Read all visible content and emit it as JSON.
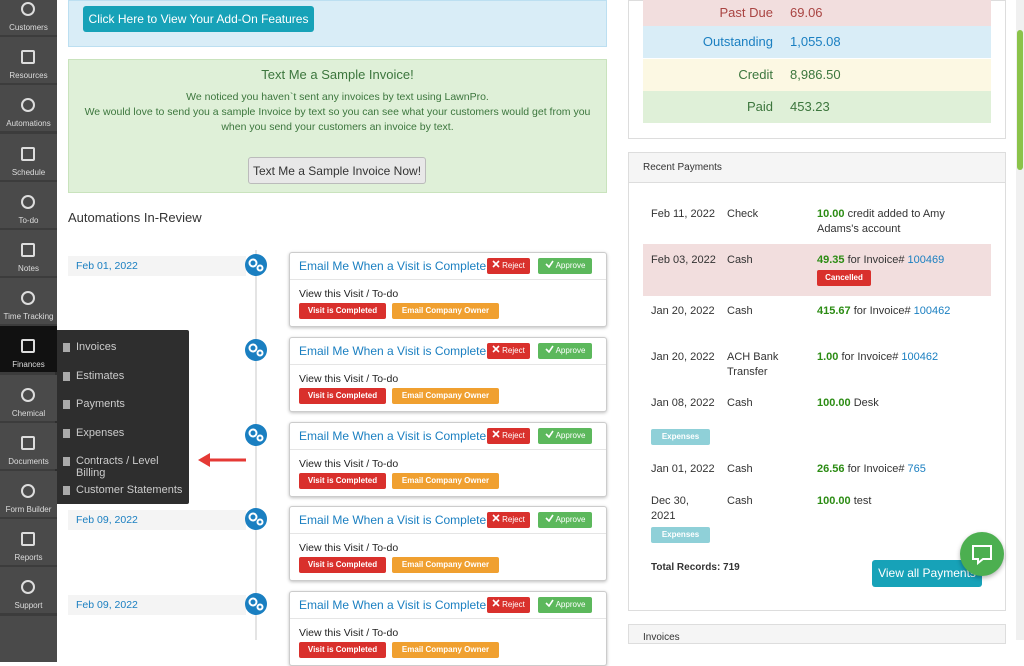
{
  "sidebar": [
    "Customers",
    "Resources",
    "Automations",
    "Schedule",
    "To-do",
    "Notes",
    "Time Tracking",
    "Finances",
    "Chemical",
    "Documents",
    "Form Builder",
    "Reports",
    "Support"
  ],
  "finance_menu": [
    "Invoices",
    "Estimates",
    "Payments",
    "Expenses",
    "Contracts / Level Billing",
    "Customer Statements"
  ],
  "addon_button": "Click Here to View Your Add-On Features",
  "sample_invoice": {
    "title": "Text Me a Sample Invoice!",
    "lines": [
      "We noticed you haven`t sent any invoices by text using LawnPro.",
      "We would love to send you a sample Invoice by text so you can see what your customers would get from you",
      "when you send your customers an invoice by text."
    ],
    "button": "Text Me a Sample Invoice Now!"
  },
  "automations": {
    "heading": "Automations In-Review",
    "items": [
      {
        "date": "Feb 01, 2022",
        "title": "Email Me When a Visit is Complete",
        "reject": "Reject",
        "approve": "Approve",
        "link": "View this Visit / To-do",
        "badges": [
          "Visit is Completed",
          "Email Company Owner"
        ]
      },
      {
        "title": "Email Me When a Visit is Complete",
        "reject": "Reject",
        "approve": "Approve",
        "link": "View this Visit / To-do",
        "badges": [
          "Visit is Completed",
          "Email Company Owner"
        ]
      },
      {
        "title": "Email Me When a Visit is Complete",
        "reject": "Reject",
        "approve": "Approve",
        "link": "View this Visit / To-do",
        "badges": [
          "Visit is Completed",
          "Email Company Owner"
        ]
      },
      {
        "date": "Feb 09, 2022",
        "title": "Email Me When a Visit is Complete",
        "reject": "Reject",
        "approve": "Approve",
        "link": "View this Visit / To-do",
        "badges": [
          "Visit is Completed",
          "Email Company Owner"
        ]
      },
      {
        "date": "Feb 09, 2022",
        "title": "Email Me When a Visit is Complete",
        "reject": "Reject",
        "approve": "Approve",
        "link": "View this Visit / To-do",
        "badges": [
          "Visit is Completed",
          "Email Company Owner"
        ]
      }
    ]
  },
  "summary": [
    {
      "label": "Past Due",
      "value": "69.06"
    },
    {
      "label": "Outstanding",
      "value": "1,055.08"
    },
    {
      "label": "Credit",
      "value": "8,986.50"
    },
    {
      "label": "Paid",
      "value": "453.23"
    }
  ],
  "recent_payments": {
    "title": "Recent Payments",
    "rows": [
      {
        "date": "Feb 11, 2022",
        "method": "Check",
        "amount": "10.00",
        "text": "credit added to Amy Adams's account"
      },
      {
        "date": "Feb 03, 2022",
        "method": "Cash",
        "amount": "49.35",
        "text": "for Invoice#",
        "invoice": "100469",
        "badge": "Cancelled"
      },
      {
        "date": "Jan 20, 2022",
        "method": "Cash",
        "amount": "415.67",
        "text": "for Invoice#",
        "invoice": "100462"
      },
      {
        "date": "Jan 20, 2022",
        "method": "ACH Bank Transfer",
        "amount": "1.00",
        "text": "for Invoice#",
        "invoice": "100462"
      },
      {
        "date": "Jan 08, 2022",
        "method": "Cash",
        "amount": "100.00",
        "text": "Desk",
        "badge": "Expenses"
      },
      {
        "date": "Jan 01, 2022",
        "method": "Cash",
        "amount": "26.56",
        "text": "for Invoice#",
        "invoice": "765"
      },
      {
        "date": "Dec 30, 2021",
        "method": "Cash",
        "amount": "100.00",
        "text": "test",
        "badge": "Expenses"
      }
    ],
    "total": "Total Records: 719",
    "button": "View all Payments"
  },
  "invoices_panel": "Invoices"
}
